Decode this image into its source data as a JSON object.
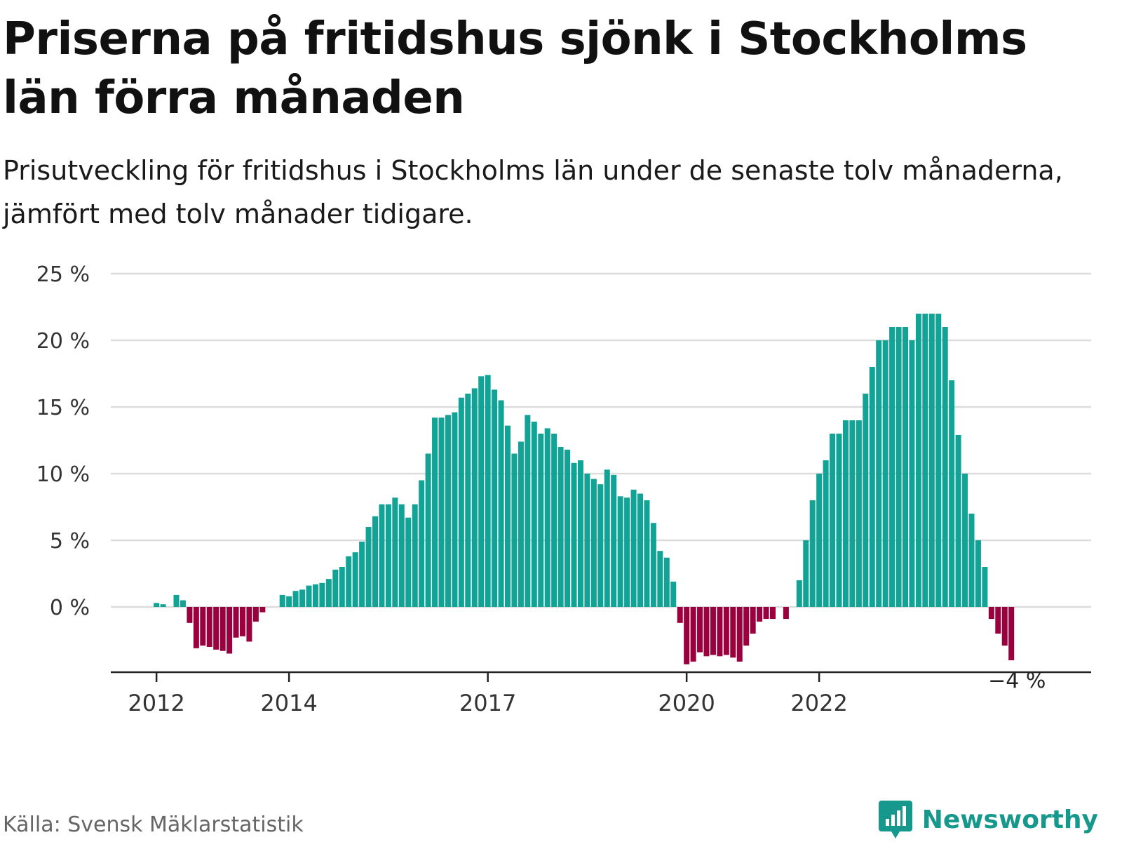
{
  "title": "Priserna på fritidshus sjönk i Stockholms län förra månaden",
  "subtitle": "Prisutveckling för fritidshus i Stockholms län under de senaste tolv månaderna, jämfört med tolv månader tidigare.",
  "source": "Källa: Svensk Mäklarstatistik",
  "brand": {
    "name": "Newsworthy",
    "icon": "bar-chart-logo-icon"
  },
  "colors": {
    "positive": "#12a397",
    "negative": "#99003d",
    "grid": "#dcdcdc",
    "axis": "#222222",
    "brand": "#16998c"
  },
  "chart_data": {
    "type": "bar",
    "title": "Priserna på fritidshus sjönk i Stockholms län förra månaden",
    "xlabel": "",
    "ylabel": "",
    "ylim": [
      -5,
      25
    ],
    "y_ticks": [
      0,
      5,
      10,
      15,
      20,
      25
    ],
    "y_tick_labels": [
      "0 %",
      "5 %",
      "10 %",
      "15 %",
      "20 %",
      "25 %"
    ],
    "x_tick_labels": [
      "2012",
      "2014",
      "2017",
      "2020",
      "2022"
    ],
    "x_tick_indices": [
      7,
      27,
      57,
      87,
      107
    ],
    "grid": true,
    "start_month": "2011-06",
    "end_month": "2023-02",
    "last_value_label": "−4 %",
    "series": [
      {
        "values": [
          0,
          0,
          0,
          0,
          0,
          0,
          0,
          0.3,
          0.2,
          0,
          0.9,
          0.5,
          -1.2,
          -3.1,
          -2.9,
          -3.0,
          -3.2,
          -3.3,
          -3.5,
          -2.3,
          -2.2,
          -2.6,
          -1.1,
          -0.4,
          0,
          0,
          0.9,
          0.8,
          1.2,
          1.3,
          1.6,
          1.7,
          1.8,
          2.1,
          2.8,
          3.0,
          3.8,
          4.1,
          4.9,
          6.0,
          6.8,
          7.7,
          7.7,
          8.2,
          7.7,
          6.7,
          7.7,
          9.5,
          11.5,
          14.2,
          14.2,
          14.4,
          14.6,
          15.7,
          16.0,
          16.4,
          17.3,
          17.4,
          16.3,
          15.5,
          13.6,
          11.5,
          12.4,
          14.4,
          13.9,
          13.0,
          13.4,
          13.0,
          12.0,
          11.8,
          10.8,
          11.0,
          10.0,
          9.6,
          9.2,
          10.3,
          9.9,
          8.3,
          8.2,
          8.8,
          8.5,
          8.0,
          6.3,
          4.2,
          3.7,
          1.9,
          -1.2,
          -4.3,
          -4.1,
          -3.4,
          -3.7,
          -3.6,
          -3.7,
          -3.6,
          -3.8,
          -4.1,
          -2.9,
          -2.0,
          -1.1,
          -0.9,
          -0.9,
          0,
          -0.9,
          0,
          2.0,
          5.0,
          8.0,
          10.0,
          11.0,
          13.0,
          13.0,
          14.0,
          14.0,
          14.0,
          16.0,
          18.0,
          20.0,
          20.0,
          21.0,
          21.0,
          21.0,
          20.0,
          22.0,
          22.0,
          22.0,
          22.0,
          21.0,
          17.0,
          12.9,
          10.0,
          7.0,
          5.0,
          3.0,
          -0.9,
          -2.0,
          -2.9,
          -4.0
        ]
      }
    ]
  }
}
